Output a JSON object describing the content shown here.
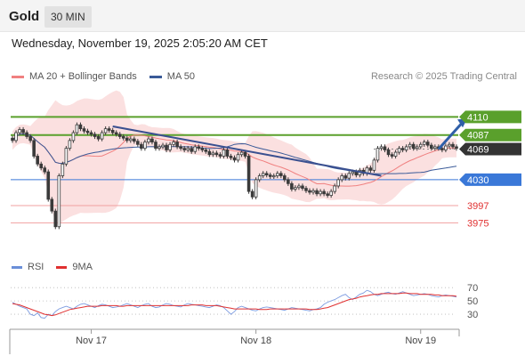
{
  "header": {
    "instrument": "Gold",
    "timeframe": "30 MIN",
    "datetime": "Wednesday, November 19, 2025 2:05:20 AM CET"
  },
  "legend": {
    "items": [
      {
        "label": "MA 20 + Bollinger Bands",
        "color": "#f08080"
      },
      {
        "label": "MA 50",
        "color": "#3a5a98"
      }
    ],
    "copyright": "Research © 2025 Trading Central"
  },
  "rsi_legend": {
    "items": [
      {
        "label": "RSI",
        "color": "#6a8fd8"
      },
      {
        "label": "9MA",
        "color": "#e03030"
      }
    ]
  },
  "colors": {
    "resistance": "#5aa02c",
    "support": "#3a78d8",
    "target": "#e03030",
    "current": "#333333",
    "candle": "#3a3a3a",
    "band_fill": "#fbe0e0",
    "ma20": "#f08080",
    "ma50": "#3a5a98",
    "trendline": "#3a5090",
    "arrow": "#2f5fa8"
  },
  "chart_data": {
    "type": "candlestick",
    "ylim": [
      3930,
      4140
    ],
    "x_labels": [
      {
        "label": "Nov 17",
        "index": 22
      },
      {
        "label": "Nov 18",
        "index": 68
      },
      {
        "label": "Nov 19",
        "index": 114
      }
    ],
    "levels": [
      {
        "value": 4110,
        "label": "4110",
        "kind": "resistance"
      },
      {
        "value": 4087,
        "label": "4087",
        "kind": "resistance"
      },
      {
        "value": 4069,
        "label": "4069",
        "kind": "current"
      },
      {
        "value": 4030,
        "label": "4030",
        "kind": "support"
      },
      {
        "value": 3997,
        "label": "3997",
        "kind": "target"
      },
      {
        "value": 3975,
        "label": "3975",
        "kind": "target"
      }
    ],
    "closes": [
      4080,
      4090,
      4094,
      4090,
      4085,
      4080,
      4060,
      4050,
      4045,
      4040,
      4005,
      3990,
      3970,
      4035,
      4050,
      4070,
      4080,
      4090,
      4100,
      4095,
      4092,
      4090,
      4088,
      4085,
      4082,
      4090,
      4095,
      4093,
      4090,
      4088,
      4085,
      4083,
      4080,
      4082,
      4079,
      4075,
      4070,
      4078,
      4082,
      4078,
      4070,
      4072,
      4074,
      4068,
      4075,
      4078,
      4072,
      4070,
      4068,
      4070,
      4066,
      4072,
      4070,
      4068,
      4066,
      4062,
      4064,
      4062,
      4060,
      4068,
      4060,
      4058,
      4055,
      4062,
      4065,
      4060,
      4015,
      4008,
      4030,
      4035,
      4038,
      4036,
      4034,
      4035,
      4038,
      4035,
      4030,
      4025,
      4018,
      4020,
      4022,
      4019,
      4016,
      4014,
      4016,
      4012,
      4015,
      4012,
      4010,
      4015,
      4022,
      4030,
      4035,
      4032,
      4038,
      4040,
      4036,
      4042,
      4038,
      4045,
      4042,
      4055,
      4070,
      4072,
      4068,
      4062,
      4060,
      4065,
      4070,
      4068,
      4072,
      4075,
      4070,
      4072,
      4075,
      4078,
      4074,
      4070,
      4072,
      4070,
      4068,
      4073,
      4075,
      4072,
      4070
    ],
    "rsi": {
      "ylim": [
        10,
        85
      ],
      "levels": [
        70,
        50,
        30
      ],
      "values": [
        48,
        45,
        42,
        40,
        38,
        30,
        28,
        32,
        25,
        24,
        30,
        28,
        34,
        38,
        40,
        42,
        40,
        38,
        42,
        45,
        46,
        44,
        42,
        40,
        43,
        45,
        44,
        42,
        40,
        41,
        42,
        44,
        46,
        44,
        42,
        40,
        43,
        45,
        46,
        42,
        40,
        41,
        44,
        46,
        45,
        43,
        42,
        41,
        44,
        46,
        45,
        44,
        43,
        42,
        41,
        40,
        42,
        44,
        43,
        40,
        35,
        30,
        34,
        40,
        42,
        40,
        38,
        36,
        35,
        38,
        40,
        41,
        40,
        39,
        38,
        37,
        36,
        38,
        40,
        39,
        38,
        37,
        36,
        35,
        37,
        38,
        40,
        45,
        48,
        50,
        52,
        55,
        58,
        60,
        55,
        52,
        56,
        60,
        62,
        66,
        64,
        60,
        58,
        60,
        62,
        63,
        61,
        60,
        62,
        64,
        62,
        60,
        58,
        59,
        60,
        61,
        60,
        58,
        57,
        56,
        58,
        59,
        58,
        57,
        56
      ],
      "ma9": [
        46,
        45,
        44,
        42,
        40,
        38,
        36,
        34,
        32,
        30,
        29,
        28,
        29,
        31,
        33,
        35,
        37,
        38,
        39,
        40,
        41,
        42,
        42,
        42,
        42,
        43,
        43,
        43,
        43,
        43,
        42,
        42,
        43,
        43,
        43,
        43,
        43,
        43,
        43,
        43,
        43,
        43,
        43,
        43,
        43,
        43,
        43,
        43,
        43,
        43,
        44,
        44,
        44,
        44,
        43,
        43,
        43,
        43,
        42,
        41,
        40,
        39,
        38,
        38,
        38,
        38,
        38,
        38,
        38,
        37,
        37,
        37,
        38,
        38,
        38,
        38,
        38,
        38,
        38,
        38,
        38,
        38,
        38,
        37,
        37,
        37,
        38,
        39,
        40,
        42,
        44,
        46,
        48,
        50,
        52,
        53,
        54,
        56,
        57,
        58,
        59,
        60,
        60,
        61,
        61,
        61,
        61,
        61,
        61,
        62,
        62,
        61,
        61,
        61,
        60,
        60,
        60,
        60,
        59,
        59,
        58,
        58,
        58,
        58,
        57
      ]
    }
  }
}
